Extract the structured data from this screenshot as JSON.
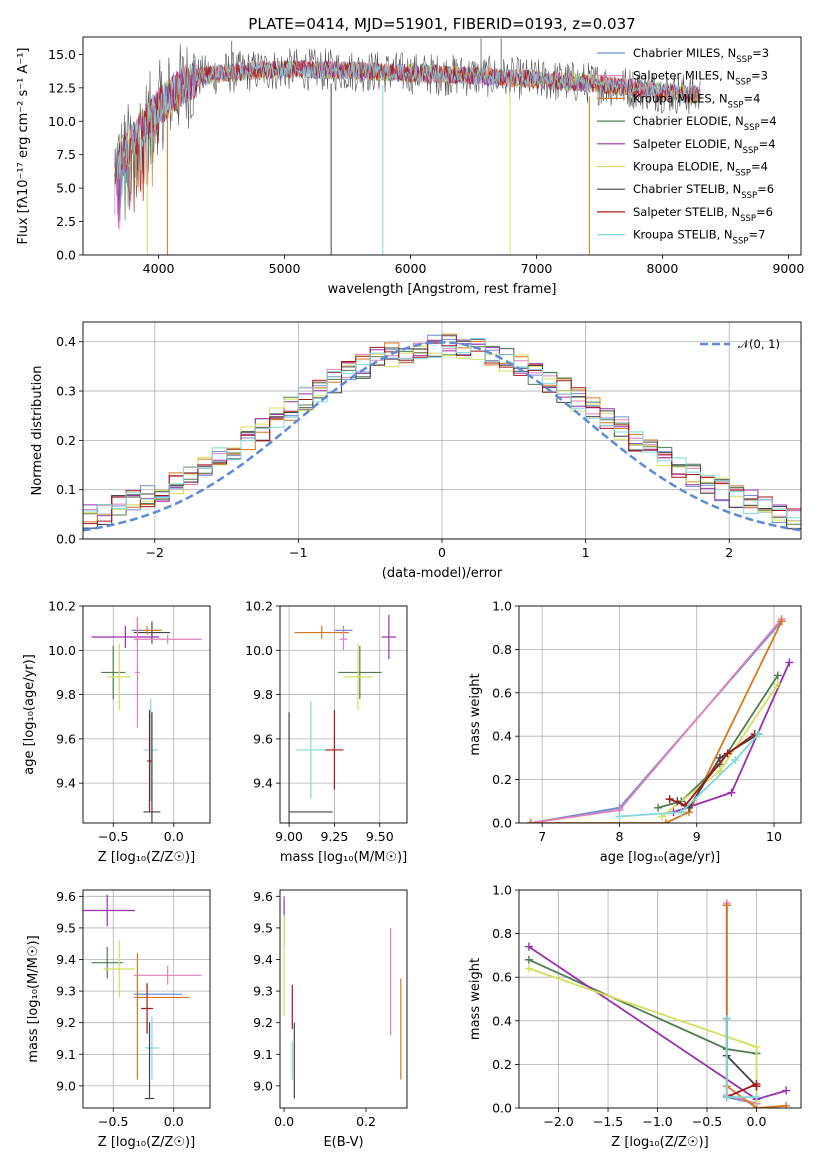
{
  "chart_data": [
    {
      "id": "spectrum",
      "type": "line",
      "title": "PLATE=0414, MJD=51901, FIBERID=0193, z=0.037",
      "xlabel": "wavelength [Angstrom, rest frame]",
      "ylabel": "Flux [fλ10⁻¹⁷ erg cm⁻² s⁻¹ A⁻¹]",
      "xlim": [
        3400,
        9100
      ],
      "ylim": [
        0,
        16.3
      ],
      "xticks": [
        4000,
        5000,
        6000,
        7000,
        8000,
        9000
      ],
      "xtick_labels": [
        "4000",
        "5000",
        "6000",
        "7000",
        "8000",
        "9000"
      ],
      "yticks": [
        0,
        2.5,
        5,
        7.5,
        10,
        12.5,
        15
      ],
      "ytick_labels": [
        "0.0",
        "2.5",
        "5.0",
        "7.5",
        "10.0",
        "12.5",
        "15.0"
      ],
      "grid": false,
      "legend_position": "top-right",
      "legend": [
        {
          "label": "Chabrier MILES, N",
          "sub": "SSP",
          "n": "=3",
          "color": "#6f8fd8"
        },
        {
          "label": "Salpeter MILES, N",
          "sub": "SSP",
          "n": "=3",
          "color": "#e27fb8"
        },
        {
          "label": "Kroupa MILES, N",
          "sub": "SSP",
          "n": "=4",
          "color": "#d9771c"
        },
        {
          "label": "Chabrier ELODIE, N",
          "sub": "SSP",
          "n": "=4",
          "color": "#4f7f4f"
        },
        {
          "label": "Salpeter ELODIE, N",
          "sub": "SSP",
          "n": "=4",
          "color": "#9b2fae"
        },
        {
          "label": "Kroupa ELODIE, N",
          "sub": "SSP",
          "n": "=4",
          "color": "#d4e05c"
        },
        {
          "label": "Chabrier STELIB, N",
          "sub": "SSP",
          "n": "=6",
          "color": "#444444"
        },
        {
          "label": "Salpeter STELIB, N",
          "sub": "SSP",
          "n": "=6",
          "color": "#a31818"
        },
        {
          "label": "Kroupa STELIB, N",
          "sub": "SSP",
          "n": "=7",
          "color": "#7fd8dc"
        }
      ],
      "continuum": {
        "x": [
          3650,
          3800,
          3950,
          4100,
          4300,
          4500,
          4800,
          5100,
          5500,
          6000,
          6500,
          7000,
          7500,
          8000,
          8300
        ],
        "y": [
          6.5,
          8.5,
          10.5,
          12.0,
          13.3,
          13.6,
          13.8,
          13.9,
          13.8,
          13.6,
          13.4,
          13.1,
          12.8,
          12.2,
          11.9
        ]
      },
      "dips": [
        {
          "x": 3910,
          "y": 0
        },
        {
          "x": 4070,
          "y": 0
        },
        {
          "x": 5370,
          "y": 0
        },
        {
          "x": 5780,
          "y": 0
        },
        {
          "x": 6790,
          "y": 0
        },
        {
          "x": 7420,
          "y": 0
        }
      ],
      "spikes": [
        {
          "x": 4580,
          "y": 16.0
        },
        {
          "x": 6560,
          "y": 16.2
        },
        {
          "x": 6720,
          "y": 16.2
        }
      ]
    },
    {
      "id": "residuals",
      "type": "line",
      "xlabel": "(data-model)/error",
      "ylabel": "Normed distribution",
      "xlim": [
        -2.5,
        2.5
      ],
      "ylim": [
        0,
        0.44
      ],
      "xticks": [
        -2,
        -1,
        0,
        1,
        2
      ],
      "xtick_labels": [
        "−2",
        "−1",
        "0",
        "1",
        "2"
      ],
      "yticks": [
        0,
        0.1,
        0.2,
        0.3,
        0.4
      ],
      "ytick_labels": [
        "0.0",
        "0.1",
        "0.2",
        "0.3",
        "0.4"
      ],
      "grid": true,
      "legend_position": "top-right",
      "normal_label": "𝒩(0, 1)",
      "normal_color": "#5b8bd8",
      "bin_width": 0.1,
      "series_colors": [
        "#6f8fd8",
        "#e27fb8",
        "#d9771c",
        "#4f7f4f",
        "#9b2fae",
        "#d4e05c",
        "#444444",
        "#a31818",
        "#7fd8dc"
      ]
    },
    {
      "id": "age-vs-z",
      "type": "scatter",
      "xlabel": "Z [log₁₀(Z/Z☉)]",
      "ylabel": "age  [log₁₀(age/yr)]",
      "xlim": [
        -0.75,
        0.3
      ],
      "ylim": [
        9.22,
        10.2
      ],
      "xticks": [
        -0.5,
        0.0
      ],
      "xtick_labels": [
        "−0.5",
        "0.0"
      ],
      "yticks": [
        9.4,
        9.6,
        9.8,
        10.0,
        10.2
      ],
      "ytick_labels": [
        "9.4",
        "9.6",
        "9.8",
        "10.0",
        "10.2"
      ],
      "grid": true,
      "points": [
        {
          "x": -0.18,
          "y": 10.08,
          "xerr": 0.15,
          "yerr": 0.05,
          "color": "#444444"
        },
        {
          "x": -0.4,
          "y": 10.06,
          "xerr": 0.28,
          "yerr": 0.05,
          "color": "#9b2fae"
        },
        {
          "x": -0.05,
          "y": 10.05,
          "xerr": 0.28,
          "yerr": 0.02,
          "color": "#e27fb8"
        },
        {
          "x": -0.22,
          "y": 10.09,
          "xerr": 0.12,
          "yerr": 0.02,
          "color": "#d9771c"
        },
        {
          "x": -0.3,
          "y": 10.09,
          "xerr": 0.05,
          "yerr": 0.06,
          "color": "#6f8fd8"
        },
        {
          "x": -0.5,
          "y": 9.9,
          "xerr": 0.1,
          "yerr": 0.12,
          "color": "#4f7f4f"
        },
        {
          "x": -0.45,
          "y": 9.88,
          "xerr": 0.1,
          "yerr": 0.15,
          "color": "#d4e05c"
        },
        {
          "x": -0.3,
          "y": 9.9,
          "xerr": 0.02,
          "yerr": 0.25,
          "color": "#e27fb8"
        },
        {
          "x": -0.19,
          "y": 9.55,
          "xerr": 0.06,
          "yerr": 0.23,
          "color": "#7fd8dc"
        },
        {
          "x": -0.2,
          "y": 9.5,
          "xerr": 0.02,
          "yerr": 0.23,
          "color": "#a31818"
        },
        {
          "x": -0.18,
          "y": 9.27,
          "xerr": 0.07,
          "yerr": 0.45,
          "color": "#444444"
        }
      ]
    },
    {
      "id": "age-vs-mass",
      "type": "scatter",
      "xlabel": "mass [log₁₀(M/M☉)]",
      "ylabel": "",
      "xlim": [
        8.95,
        9.65
      ],
      "ylim": [
        9.22,
        10.2
      ],
      "xticks": [
        9.0,
        9.25,
        9.5
      ],
      "xtick_labels": [
        "9.00",
        "9.25",
        "9.50"
      ],
      "yticks": [
        9.4,
        9.6,
        9.8,
        10.0,
        10.2
      ],
      "ytick_labels": [
        "9.4",
        "9.6",
        "9.8",
        "10.0",
        "10.2"
      ],
      "grid": true,
      "points": [
        {
          "x": 9.18,
          "y": 10.08,
          "xerr": 0.15,
          "yerr": 0.03,
          "color": "#d9771c"
        },
        {
          "x": 9.3,
          "y": 10.09,
          "xerr": 0.05,
          "yerr": 0.02,
          "color": "#6f8fd8"
        },
        {
          "x": 9.3,
          "y": 10.05,
          "xerr": 0.02,
          "yerr": 0.05,
          "color": "#e27fb8"
        },
        {
          "x": 9.55,
          "y": 10.06,
          "xerr": 0.04,
          "yerr": 0.1,
          "color": "#9b2fae"
        },
        {
          "x": 9.39,
          "y": 9.9,
          "xerr": 0.12,
          "yerr": 0.12,
          "color": "#4f7f4f"
        },
        {
          "x": 9.38,
          "y": 9.88,
          "xerr": 0.08,
          "yerr": 0.15,
          "color": "#d4e05c"
        },
        {
          "x": 9.12,
          "y": 9.55,
          "xerr": 0.08,
          "yerr": 0.22,
          "color": "#7fd8dc"
        },
        {
          "x": 9.25,
          "y": 9.55,
          "xerr": 0.05,
          "yerr": 0.18,
          "color": "#a31818"
        },
        {
          "x": 9.0,
          "y": 9.27,
          "xerr": 0.0,
          "yerr": 0.45,
          "color": "#444444"
        },
        {
          "x": 9.12,
          "y": 9.27,
          "xerr": 0.12,
          "yerr": 0.0,
          "color": "#444444"
        }
      ]
    },
    {
      "id": "weight-vs-age",
      "type": "line",
      "xlabel": "age  [log₁₀(age/yr)]",
      "ylabel": "mass weight",
      "xlim": [
        6.7,
        10.35
      ],
      "ylim": [
        0,
        1.0
      ],
      "xticks": [
        7,
        8,
        9,
        10
      ],
      "xtick_labels": [
        "7",
        "8",
        "9",
        "10"
      ],
      "yticks": [
        0,
        0.2,
        0.4,
        0.6,
        0.8,
        1.0
      ],
      "ytick_labels": [
        "0.0",
        "0.2",
        "0.4",
        "0.6",
        "0.8",
        "1.0"
      ],
      "grid": true,
      "series": [
        {
          "color": "#6f8fd8",
          "x": [
            6.85,
            8.0,
            10.1
          ],
          "y": [
            0.0,
            0.07,
            0.93
          ]
        },
        {
          "color": "#e27fb8",
          "x": [
            6.85,
            8.0,
            10.1
          ],
          "y": [
            0.0,
            0.06,
            0.94
          ]
        },
        {
          "color": "#d9771c",
          "x": [
            6.85,
            8.6,
            8.9,
            10.1
          ],
          "y": [
            0.0,
            0.0,
            0.05,
            0.93
          ]
        },
        {
          "color": "#4f7f4f",
          "x": [
            8.5,
            8.8,
            9.3,
            10.05
          ],
          "y": [
            0.07,
            0.1,
            0.27,
            0.68
          ]
        },
        {
          "color": "#9b2fae",
          "x": [
            8.7,
            9.45,
            10.2
          ],
          "y": [
            0.05,
            0.14,
            0.74
          ]
        },
        {
          "color": "#d4e05c",
          "x": [
            8.55,
            9.3,
            10.05
          ],
          "y": [
            0.03,
            0.24,
            0.64
          ]
        },
        {
          "color": "#444444",
          "x": [
            8.75,
            8.9,
            9.3,
            9.8
          ],
          "y": [
            0.1,
            0.07,
            0.3,
            0.41
          ]
        },
        {
          "color": "#a31818",
          "x": [
            8.65,
            8.85,
            9.4,
            9.75
          ],
          "y": [
            0.11,
            0.08,
            0.32,
            0.41
          ]
        },
        {
          "color": "#7fd8dc",
          "x": [
            8.0,
            8.8,
            9.5,
            9.8
          ],
          "y": [
            0.03,
            0.05,
            0.29,
            0.41
          ]
        }
      ]
    },
    {
      "id": "mass-vs-z",
      "type": "scatter",
      "xlabel": "Z [log₁₀(Z/Z☉)]",
      "ylabel": "mass [log₁₀(M/M☉)]",
      "xlim": [
        -0.75,
        0.3
      ],
      "ylim": [
        8.93,
        9.62
      ],
      "xticks": [
        -0.5,
        0.0
      ],
      "xtick_labels": [
        "−0.5",
        "0.0"
      ],
      "yticks": [
        9.0,
        9.1,
        9.2,
        9.3,
        9.4,
        9.5,
        9.6
      ],
      "ytick_labels": [
        "9.0",
        "9.1",
        "9.2",
        "9.3",
        "9.4",
        "9.5",
        "9.6"
      ],
      "grid": true,
      "points": [
        {
          "x": -0.55,
          "y": 9.555,
          "xerr": 0.23,
          "yerr": 0.05,
          "color": "#9b2fae"
        },
        {
          "x": -0.55,
          "y": 9.39,
          "xerr": 0.13,
          "yerr": 0.05,
          "color": "#4f7f4f"
        },
        {
          "x": -0.45,
          "y": 9.37,
          "xerr": 0.13,
          "yerr": 0.09,
          "color": "#d4e05c"
        },
        {
          "x": -0.05,
          "y": 9.35,
          "xerr": 0.28,
          "yerr": 0.03,
          "color": "#e27fb8"
        },
        {
          "x": -0.13,
          "y": 9.29,
          "xerr": 0.2,
          "yerr": 0.0,
          "color": "#6f8fd8"
        },
        {
          "x": -0.1,
          "y": 9.28,
          "xerr": 0.23,
          "yerr": 0.0,
          "color": "#d9771c"
        },
        {
          "x": -0.3,
          "y": 9.22,
          "xerr": 0.0,
          "yerr": 0.2,
          "color": "#d9771c"
        },
        {
          "x": -0.22,
          "y": 9.245,
          "xerr": 0.05,
          "yerr": 0.08,
          "color": "#a31818"
        },
        {
          "x": -0.18,
          "y": 9.12,
          "xerr": 0.06,
          "yerr": 0.1,
          "color": "#7fd8dc"
        },
        {
          "x": -0.2,
          "y": 8.96,
          "xerr": 0.04,
          "yerr": 0.0,
          "color": "#444444"
        },
        {
          "x": -0.2,
          "y": 9.08,
          "xerr": 0.0,
          "yerr": 0.12,
          "color": "#444444"
        }
      ]
    },
    {
      "id": "mass-vs-ebv",
      "type": "scatter",
      "xlabel": "E(B-V)",
      "ylabel": "",
      "xlim": [
        -0.01,
        0.3
      ],
      "ylim": [
        8.93,
        9.62
      ],
      "xticks": [
        0.0,
        0.2
      ],
      "xtick_labels": [
        "0.0",
        "0.2"
      ],
      "yticks": [
        9.0,
        9.1,
        9.2,
        9.3,
        9.4,
        9.5,
        9.6
      ],
      "ytick_labels": [
        "9.0",
        "9.1",
        "9.2",
        "9.3",
        "9.4",
        "9.5",
        "9.6"
      ],
      "grid": false,
      "points": [
        {
          "x": 0.0,
          "y": 9.52,
          "xerr": 0.0,
          "yerr": 0.08,
          "color": "#9b2fae"
        },
        {
          "x": 0.0,
          "y": 9.38,
          "xerr": 0.0,
          "yerr": 0.16,
          "color": "#d4e05c"
        },
        {
          "x": 0.02,
          "y": 9.25,
          "xerr": 0.0,
          "yerr": 0.07,
          "color": "#a31818"
        },
        {
          "x": 0.02,
          "y": 9.08,
          "xerr": 0.0,
          "yerr": 0.06,
          "color": "#7fd8dc"
        },
        {
          "x": 0.025,
          "y": 9.08,
          "xerr": 0.0,
          "yerr": 0.12,
          "color": "#444444"
        },
        {
          "x": 0.26,
          "y": 9.33,
          "xerr": 0.0,
          "yerr": 0.17,
          "color": "#e27fb8"
        },
        {
          "x": 0.285,
          "y": 9.18,
          "xerr": 0.0,
          "yerr": 0.16,
          "color": "#d9771c"
        }
      ]
    },
    {
      "id": "weight-vs-z",
      "type": "line",
      "xlabel": "Z [log₁₀(Z/Z☉)]",
      "ylabel": "mass weight",
      "xlim": [
        -2.4,
        0.45
      ],
      "ylim": [
        0,
        1.0
      ],
      "xticks": [
        -2.0,
        -1.5,
        -1.0,
        -0.5,
        0.0
      ],
      "xtick_labels": [
        "−2.0",
        "−1.5",
        "−1.0",
        "−0.5",
        "0.0"
      ],
      "yticks": [
        0,
        0.2,
        0.4,
        0.6,
        0.8,
        1.0
      ],
      "ytick_labels": [
        "0.0",
        "0.2",
        "0.4",
        "0.6",
        "0.8",
        "1.0"
      ],
      "grid": true,
      "series": [
        {
          "color": "#6f8fd8",
          "x": [
            -0.3,
            -0.3,
            0.0
          ],
          "y": [
            0.93,
            0.05,
            0.02
          ]
        },
        {
          "color": "#e27fb8",
          "x": [
            -0.3,
            -0.3,
            0.0
          ],
          "y": [
            0.94,
            0.06,
            0.02
          ]
        },
        {
          "color": "#d9771c",
          "x": [
            -0.3,
            -0.3,
            0.0,
            0.3
          ],
          "y": [
            0.93,
            0.1,
            0.0,
            0.01
          ]
        },
        {
          "color": "#4f7f4f",
          "x": [
            -2.3,
            -0.3,
            0.0
          ],
          "y": [
            0.68,
            0.27,
            0.25
          ]
        },
        {
          "color": "#9b2fae",
          "x": [
            -2.3,
            0.0,
            0.3
          ],
          "y": [
            0.74,
            0.04,
            0.08
          ]
        },
        {
          "color": "#d4e05c",
          "x": [
            -2.3,
            0.0,
            0.0
          ],
          "y": [
            0.64,
            0.28,
            0.03
          ]
        },
        {
          "color": "#444444",
          "x": [
            -0.3,
            -0.3,
            0.0
          ],
          "y": [
            0.41,
            0.24,
            0.1
          ]
        },
        {
          "color": "#a31818",
          "x": [
            -0.3,
            0.0,
            0.0
          ],
          "y": [
            0.05,
            0.11,
            0.1
          ]
        },
        {
          "color": "#7fd8dc",
          "x": [
            -0.3,
            -0.3,
            0.0
          ],
          "y": [
            0.41,
            0.05,
            0.05
          ]
        }
      ]
    }
  ]
}
